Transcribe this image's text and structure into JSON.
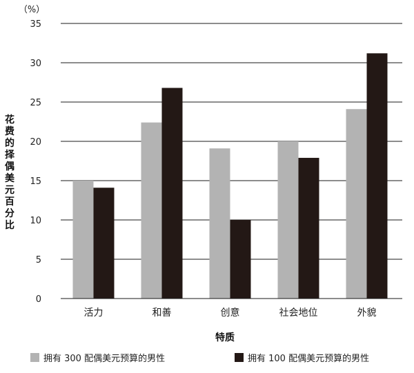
{
  "chart_data": {
    "type": "bar",
    "unit_label": "（%）",
    "xlabel": "特质",
    "ylabel": "花费的择偶美元百分比",
    "categories": [
      "活力",
      "和善",
      "创意",
      "社会地位",
      "外貌"
    ],
    "series": [
      {
        "name": "拥有 300 配偶美元预算的男性",
        "color": "#b3b3b3",
        "values": [
          15,
          22.4,
          19.1,
          20,
          24.1
        ]
      },
      {
        "name": "拥有 100 配偶美元预算的男性",
        "color": "#231815",
        "values": [
          14.1,
          26.8,
          10,
          17.9,
          31.2
        ]
      }
    ],
    "ylim": [
      0,
      35
    ],
    "yticks": [
      0,
      5,
      10,
      15,
      20,
      25,
      30,
      35
    ],
    "grid": true,
    "legend_position": "bottom"
  }
}
